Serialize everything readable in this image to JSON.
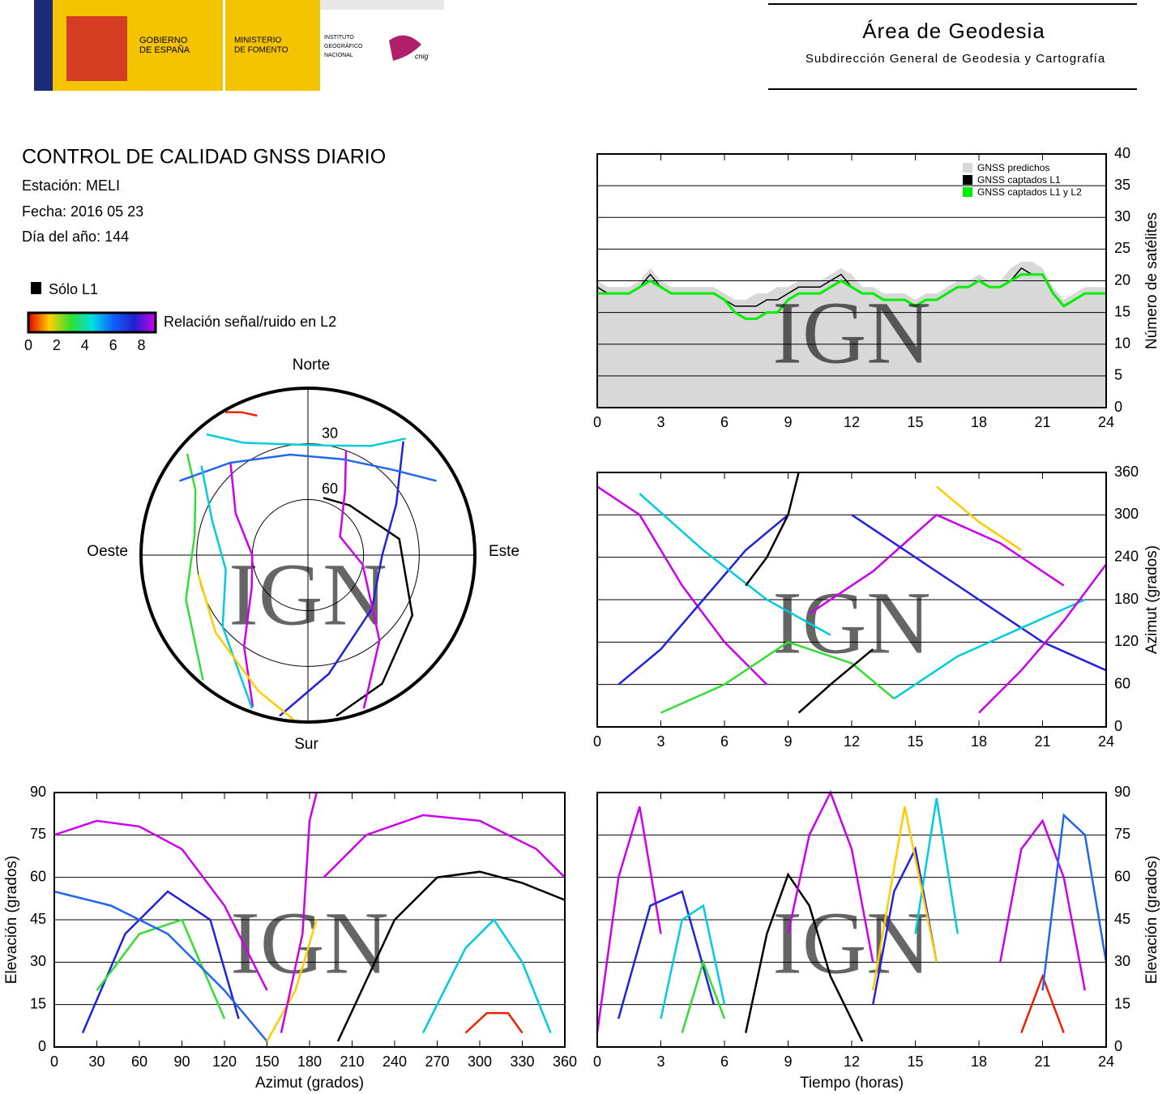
{
  "header": {
    "logo_lines": [
      "GOBIERNO",
      "DE ESPAÑA",
      "MINISTERIO",
      "DE FOMENTO",
      "INSTITUTO",
      "GEOGRÁFICO",
      "NACIONAL",
      "cnig"
    ],
    "area": "Área de Geodesia",
    "subarea": "Subdirección General de Geodesia y Cartografía"
  },
  "info": {
    "title": "CONTROL DE CALIDAD GNSS DIARIO",
    "station": "Estación: MELI",
    "date": "Fecha: 2016 05 23",
    "doy": "Día del año: 144"
  },
  "legend": {
    "l1": "Sólo L1",
    "snr": "Relación señal/ruido en L2",
    "snr_ticks": [
      0,
      2,
      4,
      6,
      8
    ],
    "snr_lim": [
      0,
      9
    ],
    "snr_colors": [
      "#e00000",
      "#ffd000",
      "#30e030",
      "#00e0e0",
      "#1060ff",
      "#2020d0",
      "#d000f0"
    ]
  },
  "watermark": "IGN",
  "chart_data": [
    {
      "type": "polar",
      "labels": {
        "north": "Norte",
        "south": "Sur",
        "east": "Este",
        "west": "Oeste"
      },
      "rticks": [
        30,
        60
      ],
      "series": [
        {
          "color": "#000000",
          "x": [
            15,
            40,
            80,
            120,
            150,
            170
          ],
          "values": [
            58,
            55,
            40,
            25,
            10,
            2
          ]
        },
        {
          "color": "#cc00ee",
          "x": [
            200,
            215,
            240,
            270,
            300,
            320
          ],
          "values": [
            3,
            30,
            55,
            60,
            45,
            25
          ]
        },
        {
          "color": "#2222dd",
          "x": [
            190,
            170,
            130,
            90,
            60,
            40
          ],
          "values": [
            2,
            25,
            45,
            50,
            35,
            10
          ]
        },
        {
          "color": "#00ccdd",
          "x": [
            320,
            330,
            345,
            10,
            30,
            40
          ],
          "values": [
            5,
            20,
            28,
            30,
            22,
            8
          ]
        },
        {
          "color": "#33dd33",
          "x": [
            220,
            250,
            280,
            300,
            310
          ],
          "values": [
            2,
            20,
            28,
            20,
            5
          ]
        },
        {
          "color": "#cc00ee",
          "x": [
            160,
            140,
            100,
            60,
            30,
            20
          ],
          "values": [
            2,
            30,
            60,
            70,
            50,
            30
          ]
        },
        {
          "color": "#2266ee",
          "x": [
            300,
            320,
            350,
            20,
            45,
            60
          ],
          "values": [
            10,
            25,
            35,
            35,
            25,
            10
          ]
        },
        {
          "color": "#00ccdd",
          "x": [
            200,
            230,
            260,
            290,
            310
          ],
          "values": [
            2,
            30,
            45,
            35,
            15
          ]
        },
        {
          "color": "#ffcc00",
          "x": [
            185,
            200,
            230,
            260
          ],
          "values": [
            1,
            12,
            25,
            30
          ]
        },
        {
          "color": "#ee2200",
          "x": [
            330,
            335,
            340
          ],
          "values": [
            1,
            5,
            10
          ]
        }
      ]
    },
    {
      "type": "count",
      "ylabel": "Número de satélites",
      "xlim": [
        0,
        24
      ],
      "xticks": [
        0,
        3,
        6,
        9,
        12,
        15,
        18,
        21,
        24
      ],
      "ylim": [
        0,
        40
      ],
      "yticks": [
        0,
        5,
        10,
        15,
        20,
        25,
        30,
        35,
        40
      ],
      "x": [
        0,
        0.5,
        1,
        1.5,
        2,
        2.5,
        3,
        3.5,
        4,
        4.5,
        5,
        5.5,
        6,
        6.5,
        7,
        7.5,
        8,
        8.5,
        9,
        9.5,
        10,
        10.5,
        11,
        11.5,
        12,
        12.5,
        13,
        13.5,
        14,
        14.5,
        15,
        15.5,
        16,
        16.5,
        17,
        17.5,
        18,
        18.5,
        19,
        19.5,
        20,
        20.5,
        21,
        21.5,
        22,
        22.5,
        23,
        23.5,
        24
      ],
      "series": [
        {
          "name": "GNSS predichos",
          "color": "#d8d8d8",
          "values": [
            20,
            19,
            19,
            19,
            20,
            22,
            20,
            19,
            19,
            19,
            19,
            19,
            18,
            17,
            17,
            18,
            18,
            19,
            19,
            20,
            20,
            20,
            21,
            22,
            21,
            19,
            19,
            18,
            18,
            18,
            17,
            18,
            18,
            19,
            20,
            20,
            21,
            20,
            20,
            22,
            23,
            23,
            22,
            19,
            17,
            18,
            19,
            19,
            19
          ]
        },
        {
          "name": "GNSS captados L1",
          "color": "#000000",
          "values": [
            19,
            18,
            18,
            18,
            19,
            21,
            19,
            18,
            18,
            18,
            18,
            18,
            17,
            16,
            16,
            16,
            17,
            17,
            18,
            19,
            19,
            19,
            20,
            21,
            19,
            18,
            18,
            17,
            17,
            17,
            16,
            17,
            17,
            18,
            19,
            19,
            20,
            19,
            19,
            20,
            22,
            21,
            21,
            18,
            16,
            17,
            18,
            18,
            18
          ]
        },
        {
          "name": "GNSS captados L1 y L2",
          "color": "#00ee00",
          "values": [
            18,
            18,
            18,
            18,
            19,
            20,
            19,
            18,
            18,
            18,
            18,
            18,
            17,
            15,
            14,
            14,
            15,
            15,
            17,
            18,
            18,
            18,
            19,
            20,
            19,
            18,
            18,
            17,
            17,
            17,
            16,
            17,
            17,
            18,
            19,
            19,
            20,
            19,
            19,
            20,
            21,
            21,
            21,
            18,
            16,
            17,
            18,
            18,
            18
          ]
        }
      ]
    },
    {
      "type": "tracks",
      "ylabel": "Azimut (grados)",
      "xlim": [
        0,
        24
      ],
      "xticks": [
        0,
        3,
        6,
        9,
        12,
        15,
        18,
        21,
        24
      ],
      "ylim": [
        0,
        360
      ],
      "yticks": [
        0,
        60,
        120,
        180,
        240,
        300,
        360
      ],
      "series": [
        {
          "color": "#cc00ee",
          "x": [
            0,
            2,
            4,
            6,
            8
          ],
          "values": [
            340,
            300,
            200,
            120,
            60
          ]
        },
        {
          "color": "#2222dd",
          "x": [
            1,
            3,
            5,
            7,
            9
          ],
          "values": [
            60,
            110,
            180,
            250,
            300
          ]
        },
        {
          "color": "#00ccdd",
          "x": [
            2,
            5,
            8,
            11
          ],
          "values": [
            330,
            250,
            180,
            130
          ]
        },
        {
          "color": "#33dd33",
          "x": [
            3,
            6,
            9,
            12,
            14
          ],
          "values": [
            20,
            60,
            120,
            90,
            40
          ]
        },
        {
          "color": "#000000",
          "x": [
            7,
            8,
            9,
            9.5
          ],
          "values": [
            200,
            240,
            300,
            360
          ]
        },
        {
          "color": "#cc00ee",
          "x": [
            10,
            13,
            16,
            19,
            22
          ],
          "values": [
            160,
            220,
            300,
            260,
            200
          ]
        },
        {
          "color": "#2222dd",
          "x": [
            12,
            15,
            18,
            21,
            24
          ],
          "values": [
            300,
            240,
            180,
            120,
            80
          ]
        },
        {
          "color": "#00ccdd",
          "x": [
            14,
            17,
            20,
            23
          ],
          "values": [
            40,
            100,
            140,
            180
          ]
        },
        {
          "color": "#ffcc00",
          "x": [
            16,
            18,
            20
          ],
          "values": [
            340,
            290,
            250
          ]
        },
        {
          "color": "#cc00ee",
          "x": [
            18,
            20,
            22,
            24
          ],
          "values": [
            20,
            80,
            150,
            230
          ]
        },
        {
          "color": "#000000",
          "x": [
            9.5,
            11,
            13
          ],
          "values": [
            20,
            60,
            110
          ]
        }
      ]
    },
    {
      "type": "tracks",
      "xlabel": "Azimut (grados)",
      "ylabel": "Elevación (grados)",
      "yside": "left",
      "xlim": [
        0,
        360
      ],
      "xticks": [
        0,
        30,
        60,
        90,
        120,
        150,
        180,
        210,
        240,
        270,
        300,
        330,
        360
      ],
      "ylim": [
        0,
        90
      ],
      "yticks": [
        0,
        15,
        30,
        45,
        60,
        75,
        90
      ],
      "series": [
        {
          "color": "#cc00ee",
          "x": [
            0,
            30,
            60,
            90,
            120,
            150
          ],
          "values": [
            75,
            80,
            78,
            70,
            50,
            20
          ]
        },
        {
          "color": "#2222dd",
          "x": [
            20,
            50,
            80,
            110,
            130
          ],
          "values": [
            5,
            40,
            55,
            45,
            10
          ]
        },
        {
          "color": "#000000",
          "x": [
            200,
            240,
            270,
            300,
            330,
            360
          ],
          "values": [
            2,
            45,
            60,
            62,
            58,
            52
          ]
        },
        {
          "color": "#00ccdd",
          "x": [
            260,
            290,
            310,
            330,
            350
          ],
          "values": [
            5,
            35,
            45,
            30,
            5
          ]
        },
        {
          "color": "#33dd33",
          "x": [
            30,
            60,
            90,
            120
          ],
          "values": [
            20,
            40,
            45,
            10
          ]
        },
        {
          "color": "#cc00ee",
          "x": [
            190,
            220,
            260,
            300,
            340,
            360
          ],
          "values": [
            60,
            75,
            82,
            80,
            70,
            60
          ]
        },
        {
          "color": "#ee2200",
          "x": [
            290,
            305,
            320,
            330
          ],
          "values": [
            5,
            12,
            12,
            5
          ]
        },
        {
          "color": "#2266ee",
          "x": [
            0,
            40,
            80,
            120,
            150
          ],
          "values": [
            55,
            50,
            40,
            20,
            2
          ]
        },
        {
          "color": "#ffcc00",
          "x": [
            150,
            170,
            185
          ],
          "values": [
            2,
            20,
            45
          ]
        },
        {
          "color": "#cc00ee",
          "x": [
            160,
            175,
            180,
            185
          ],
          "values": [
            5,
            40,
            80,
            90
          ]
        }
      ]
    },
    {
      "type": "tracks",
      "xlabel": "Tiempo (horas)",
      "ylabel": "Elevación (grados)",
      "xlim": [
        0,
        24
      ],
      "xticks": [
        0,
        3,
        6,
        9,
        12,
        15,
        18,
        21,
        24
      ],
      "ylim": [
        0,
        90
      ],
      "yticks": [
        0,
        15,
        30,
        45,
        60,
        75,
        90
      ],
      "series": [
        {
          "color": "#cc00ee",
          "x": [
            0,
            1,
            2,
            3
          ],
          "values": [
            5,
            60,
            85,
            40
          ]
        },
        {
          "color": "#2222dd",
          "x": [
            1,
            2.5,
            4,
            5.5
          ],
          "values": [
            10,
            50,
            55,
            15
          ]
        },
        {
          "color": "#000000",
          "x": [
            7,
            8,
            9,
            10,
            11,
            12.5
          ],
          "values": [
            5,
            40,
            61,
            50,
            25,
            2
          ]
        },
        {
          "color": "#00ccdd",
          "x": [
            3,
            4,
            5,
            6
          ],
          "values": [
            10,
            45,
            50,
            15
          ]
        },
        {
          "color": "#33dd33",
          "x": [
            4,
            5,
            6
          ],
          "values": [
            5,
            30,
            10
          ]
        },
        {
          "color": "#cc00ee",
          "x": [
            9,
            10,
            11,
            12,
            13
          ],
          "values": [
            40,
            75,
            90,
            70,
            30
          ]
        },
        {
          "color": "#2222dd",
          "x": [
            13,
            14,
            15,
            16
          ],
          "values": [
            15,
            55,
            70,
            30
          ]
        },
        {
          "color": "#00ccdd",
          "x": [
            15,
            16,
            17
          ],
          "values": [
            40,
            88,
            40
          ]
        },
        {
          "color": "#ffcc00",
          "x": [
            13,
            14.5,
            16
          ],
          "values": [
            20,
            85,
            30
          ]
        },
        {
          "color": "#cc00ee",
          "x": [
            19,
            20,
            21,
            22,
            23
          ],
          "values": [
            30,
            70,
            80,
            60,
            20
          ]
        },
        {
          "color": "#ee2200",
          "x": [
            20,
            21,
            22
          ],
          "values": [
            5,
            25,
            5
          ]
        },
        {
          "color": "#2266ee",
          "x": [
            21,
            22,
            23,
            24
          ],
          "values": [
            20,
            82,
            75,
            30
          ]
        }
      ]
    }
  ]
}
